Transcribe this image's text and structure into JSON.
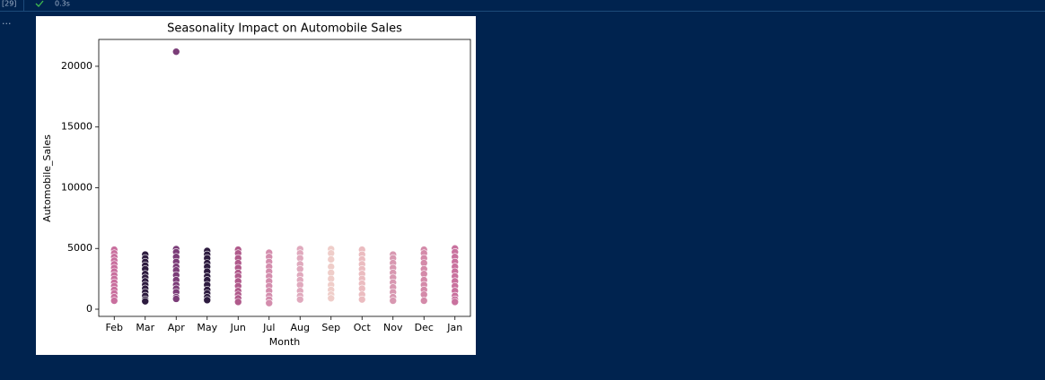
{
  "cell": {
    "execution_count": "[29]",
    "duration": "0.3s",
    "output_marker": "..."
  },
  "chart_data": {
    "type": "scatter",
    "title": "Seasonality Impact on Automobile Sales",
    "xlabel": "Month",
    "ylabel": "Automobile_Sales",
    "categories": [
      "Feb",
      "Mar",
      "Apr",
      "May",
      "Jun",
      "Jul",
      "Aug",
      "Sep",
      "Oct",
      "Nov",
      "Dec",
      "Jan"
    ],
    "colors": [
      "#c96f9e",
      "#2d1b3f",
      "#7b3d78",
      "#2d1b3f",
      "#b05a8b",
      "#d48dad",
      "#e0a9bd",
      "#efcdc9",
      "#ebbcc0",
      "#d898b1",
      "#d48aa9",
      "#c9719e"
    ],
    "values": [
      [
        4900,
        4600,
        4300,
        4000,
        3700,
        3400,
        3100,
        2800,
        2500,
        2200,
        1900,
        1600,
        1300,
        1000,
        700
      ],
      [
        4500,
        4200,
        3900,
        3600,
        3300,
        2900,
        2600,
        2300,
        2000,
        1700,
        1400,
        1100,
        800,
        650
      ],
      [
        21200,
        4950,
        4700,
        4300,
        3900,
        3500,
        3200,
        2800,
        2400,
        2000,
        1700,
        1400,
        1000,
        850
      ],
      [
        4800,
        4500,
        4200,
        3800,
        3500,
        3100,
        2700,
        2400,
        2000,
        1600,
        1300,
        1000,
        750
      ],
      [
        4900,
        4600,
        4200,
        3800,
        3400,
        3000,
        2700,
        2300,
        1900,
        1500,
        1200,
        900,
        600
      ],
      [
        4650,
        4300,
        3900,
        3500,
        3100,
        2700,
        2300,
        1900,
        1500,
        1100,
        800,
        500
      ],
      [
        4950,
        4600,
        4200,
        3700,
        3300,
        2800,
        2400,
        2000,
        1500,
        1100,
        800
      ],
      [
        4950,
        4600,
        4100,
        3500,
        3000,
        2500,
        2000,
        1600,
        1200,
        900
      ],
      [
        4900,
        4500,
        4100,
        3700,
        3300,
        2900,
        2500,
        2100,
        1700,
        1200,
        800
      ],
      [
        4500,
        4200,
        3800,
        3400,
        3000,
        2600,
        2200,
        1800,
        1400,
        1000,
        700
      ],
      [
        4900,
        4600,
        4200,
        3800,
        3300,
        2900,
        2400,
        2000,
        1600,
        1200,
        700
      ],
      [
        5000,
        4700,
        4300,
        3900,
        3500,
        3100,
        2700,
        2300,
        1900,
        1500,
        1100,
        800,
        600
      ]
    ],
    "ylim": [
      -590,
      22210
    ],
    "yticks": [
      0,
      5000,
      10000,
      15000,
      20000
    ]
  }
}
